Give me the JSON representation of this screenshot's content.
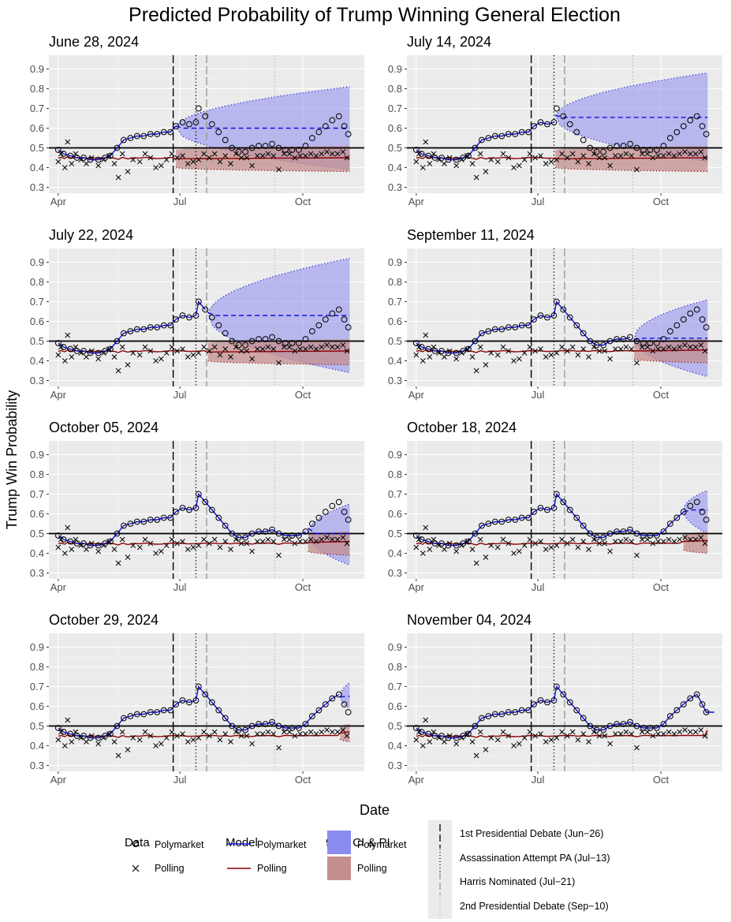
{
  "title": "Predicted Probability of Trump Winning General Election",
  "ylabel": "Trump Win Probability",
  "xlabel": "Date",
  "colors": {
    "panel_bg": "#ebebeb",
    "grid_major": "#ffffff",
    "polymarket_line": "#1010e0",
    "polymarket_ribbon": "#8c8cf0",
    "polling_line": "#8b0000",
    "polling_ribbon": "#c48e8e",
    "hline": "#000000",
    "event_gray": "#999999",
    "event_lightgray": "#b3b3b3"
  },
  "legend": {
    "data": {
      "title": "Data",
      "items": [
        "Polymarket",
        "Polling"
      ]
    },
    "model": {
      "title": "Model",
      "items": [
        "Polymarket",
        "Polling"
      ]
    },
    "ci": {
      "title": "95% CI & PI",
      "items": [
        "Polymarket",
        "Polling"
      ]
    },
    "events": [
      "1st Presidential Debate (Jun−26)",
      "Assassination Attempt PA (Jul−13)",
      "Harris Nominated (Jul−21)",
      "2nd Presidential Debate (Sep−10)"
    ]
  },
  "chart_data": {
    "type": "line",
    "x_axis": {
      "ticks": [
        "Apr",
        "Jul",
        "Oct"
      ],
      "tick_dates": [
        "2024-04-01",
        "2024-07-01",
        "2024-10-01"
      ],
      "range": [
        "2024-03-25",
        "2024-11-16"
      ]
    },
    "y_axis": {
      "ticks": [
        "0.3",
        "0.4",
        "0.5",
        "0.6",
        "0.7",
        "0.8",
        "0.9"
      ],
      "range": [
        0.27,
        0.97
      ]
    },
    "reference_line_y": 0.5,
    "events": [
      {
        "date": "2024-06-26",
        "style": "longdash",
        "color": "black"
      },
      {
        "date": "2024-07-13",
        "style": "dotted",
        "color": "black"
      },
      {
        "date": "2024-07-21",
        "style": "longdash",
        "color": "gray"
      },
      {
        "date": "2024-09-10",
        "style": "dotted",
        "color": "lightgray"
      }
    ],
    "polymarket_observed": [
      [
        "2024-04-01",
        0.49
      ],
      [
        "2024-04-05",
        0.47
      ],
      [
        "2024-04-10",
        0.46
      ],
      [
        "2024-04-15",
        0.45
      ],
      [
        "2024-04-20",
        0.45
      ],
      [
        "2024-04-25",
        0.44
      ],
      [
        "2024-05-01",
        0.44
      ],
      [
        "2024-05-06",
        0.45
      ],
      [
        "2024-05-10",
        0.46
      ],
      [
        "2024-05-15",
        0.5
      ],
      [
        "2024-05-20",
        0.54
      ],
      [
        "2024-05-25",
        0.55
      ],
      [
        "2024-05-30",
        0.56
      ],
      [
        "2024-06-04",
        0.56
      ],
      [
        "2024-06-09",
        0.57
      ],
      [
        "2024-06-14",
        0.57
      ],
      [
        "2024-06-19",
        0.58
      ],
      [
        "2024-06-24",
        0.58
      ],
      [
        "2024-06-28",
        0.61
      ],
      [
        "2024-07-03",
        0.63
      ],
      [
        "2024-07-08",
        0.62
      ],
      [
        "2024-07-13",
        0.63
      ],
      [
        "2024-07-15",
        0.7
      ],
      [
        "2024-07-20",
        0.66
      ],
      [
        "2024-07-25",
        0.62
      ],
      [
        "2024-07-30",
        0.58
      ],
      [
        "2024-08-04",
        0.54
      ],
      [
        "2024-08-09",
        0.5
      ],
      [
        "2024-08-14",
        0.48
      ],
      [
        "2024-08-19",
        0.48
      ],
      [
        "2024-08-24",
        0.5
      ],
      [
        "2024-08-29",
        0.51
      ],
      [
        "2024-09-03",
        0.51
      ],
      [
        "2024-09-08",
        0.52
      ],
      [
        "2024-09-13",
        0.5
      ],
      [
        "2024-09-18",
        0.49
      ],
      [
        "2024-09-23",
        0.49
      ],
      [
        "2024-09-28",
        0.49
      ],
      [
        "2024-10-03",
        0.51
      ],
      [
        "2024-10-08",
        0.55
      ],
      [
        "2024-10-13",
        0.58
      ],
      [
        "2024-10-18",
        0.61
      ],
      [
        "2024-10-23",
        0.64
      ],
      [
        "2024-10-28",
        0.66
      ],
      [
        "2024-11-01",
        0.61
      ],
      [
        "2024-11-04",
        0.57
      ]
    ],
    "polling_observed": [
      [
        "2024-04-01",
        0.43
      ],
      [
        "2024-04-03",
        0.47
      ],
      [
        "2024-04-06",
        0.4
      ],
      [
        "2024-04-08",
        0.53
      ],
      [
        "2024-04-11",
        0.42
      ],
      [
        "2024-04-14",
        0.47
      ],
      [
        "2024-04-18",
        0.44
      ],
      [
        "2024-04-22",
        0.42
      ],
      [
        "2024-04-26",
        0.45
      ],
      [
        "2024-05-01",
        0.41
      ],
      [
        "2024-05-05",
        0.44
      ],
      [
        "2024-05-09",
        0.46
      ],
      [
        "2024-05-13",
        0.42
      ],
      [
        "2024-05-16",
        0.35
      ],
      [
        "2024-05-19",
        0.47
      ],
      [
        "2024-05-23",
        0.38
      ],
      [
        "2024-05-27",
        0.44
      ],
      [
        "2024-06-01",
        0.43
      ],
      [
        "2024-06-05",
        0.47
      ],
      [
        "2024-06-09",
        0.45
      ],
      [
        "2024-06-13",
        0.4
      ],
      [
        "2024-06-17",
        0.41
      ],
      [
        "2024-06-21",
        0.44
      ],
      [
        "2024-06-25",
        0.47
      ],
      [
        "2024-06-29",
        0.45
      ],
      [
        "2024-07-03",
        0.46
      ],
      [
        "2024-07-07",
        0.42
      ],
      [
        "2024-07-11",
        0.43
      ],
      [
        "2024-07-15",
        0.44
      ],
      [
        "2024-07-19",
        0.47
      ],
      [
        "2024-07-23",
        0.45
      ],
      [
        "2024-07-27",
        0.47
      ],
      [
        "2024-07-31",
        0.43
      ],
      [
        "2024-08-04",
        0.46
      ],
      [
        "2024-08-08",
        0.42
      ],
      [
        "2024-08-12",
        0.47
      ],
      [
        "2024-08-16",
        0.45
      ],
      [
        "2024-08-20",
        0.45
      ],
      [
        "2024-08-24",
        0.41
      ],
      [
        "2024-08-28",
        0.46
      ],
      [
        "2024-09-01",
        0.46
      ],
      [
        "2024-09-05",
        0.47
      ],
      [
        "2024-09-09",
        0.46
      ],
      [
        "2024-09-13",
        0.39
      ],
      [
        "2024-09-17",
        0.47
      ],
      [
        "2024-09-21",
        0.47
      ],
      [
        "2024-09-25",
        0.45
      ],
      [
        "2024-09-29",
        0.46
      ],
      [
        "2024-10-03",
        0.46
      ],
      [
        "2024-10-07",
        0.47
      ],
      [
        "2024-10-11",
        0.46
      ],
      [
        "2024-10-15",
        0.47
      ],
      [
        "2024-10-19",
        0.48
      ],
      [
        "2024-10-23",
        0.47
      ],
      [
        "2024-10-27",
        0.47
      ],
      [
        "2024-10-31",
        0.48
      ],
      [
        "2024-11-03",
        0.45
      ]
    ],
    "panels": [
      {
        "title": "June 28, 2024",
        "cutoff": "2024-06-28",
        "poly_forecast": {
          "mean": 0.6,
          "ci_end": [
            0.39,
            0.81
          ]
        },
        "poll_forecast": {
          "mean": 0.445,
          "ci_end": [
            0.38,
            0.51
          ]
        }
      },
      {
        "title": "July 14, 2024",
        "cutoff": "2024-07-14",
        "poly_forecast": {
          "mean": 0.655,
          "ci_end": [
            0.43,
            0.88
          ]
        },
        "poll_forecast": {
          "mean": 0.445,
          "ci_end": [
            0.38,
            0.51
          ]
        }
      },
      {
        "title": "July 22, 2024",
        "cutoff": "2024-07-22",
        "poly_forecast": {
          "mean": 0.63,
          "ci_end": [
            0.34,
            0.92
          ]
        },
        "poll_forecast": {
          "mean": 0.445,
          "ci_end": [
            0.38,
            0.51
          ]
        }
      },
      {
        "title": "September 11, 2024",
        "cutoff": "2024-09-11",
        "poly_forecast": {
          "mean": 0.515,
          "ci_end": [
            0.32,
            0.71
          ]
        },
        "poll_forecast": {
          "mean": 0.45,
          "ci_end": [
            0.39,
            0.51
          ]
        }
      },
      {
        "title": "October 05, 2024",
        "cutoff": "2024-10-05",
        "poly_forecast": {
          "mean": 0.5,
          "ci_end": [
            0.34,
            0.65
          ]
        },
        "poll_forecast": {
          "mean": 0.455,
          "ci_end": [
            0.39,
            0.51
          ]
        }
      },
      {
        "title": "October 18, 2024",
        "cutoff": "2024-10-18",
        "poly_forecast": {
          "mean": 0.62,
          "ci_end": [
            0.5,
            0.72
          ]
        },
        "poll_forecast": {
          "mean": 0.46,
          "ci_end": [
            0.4,
            0.51
          ]
        }
      },
      {
        "title": "October 29, 2024",
        "cutoff": "2024-10-29",
        "poly_forecast": {
          "mean": 0.65,
          "ci_end": [
            0.59,
            0.72
          ]
        },
        "poll_forecast": {
          "mean": 0.465,
          "ci_end": [
            0.42,
            0.51
          ]
        }
      },
      {
        "title": "November 04, 2024",
        "cutoff": "2024-11-04",
        "poly_forecast": {
          "mean": 0.57,
          "ci_end": [
            0.56,
            0.58
          ]
        },
        "poll_forecast": {
          "mean": 0.47,
          "ci_end": [
            0.43,
            0.49
          ]
        }
      }
    ]
  }
}
